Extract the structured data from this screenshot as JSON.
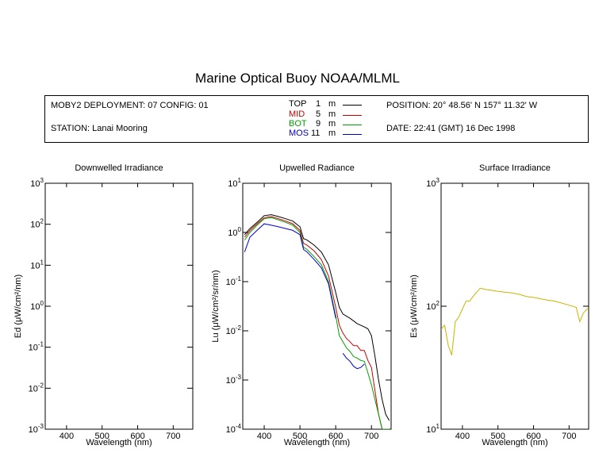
{
  "title": "Marine Optical Buoy NOAA/MLML",
  "info": {
    "deployment": "MOBY2 DEPLOYMENT: 07 CONFIG: 01",
    "station": "STATION: Lanai Mooring",
    "position": "POSITION: 20° 48.56' N   157° 11.32' W",
    "date": "DATE: 22:41 (GMT) 16 Dec 1998"
  },
  "legend": [
    {
      "name": "TOP",
      "depth": "1",
      "unit": "m",
      "color": "#000000"
    },
    {
      "name": "MID",
      "depth": "5",
      "unit": "m",
      "color": "#cc0000"
    },
    {
      "name": "BOT",
      "depth": "9",
      "unit": "m",
      "color": "#00a000"
    },
    {
      "name": "MOS",
      "depth": "11",
      "unit": "m",
      "color": "#0000cc"
    }
  ],
  "chart_data": [
    {
      "type": "line",
      "title": "Downwelled Irradiance",
      "xlabel": "Wavelength (nm)",
      "ylabel": "Ed  (μW/cm²/nm)",
      "xlim": [
        340,
        755
      ],
      "ylim": [
        0.001,
        1000
      ],
      "yscale": "log",
      "xticks": [
        400,
        500,
        600,
        700
      ],
      "yticks": [
        {
          "base": "10",
          "exp": "-3"
        },
        {
          "base": "10",
          "exp": "-2"
        },
        {
          "base": "10",
          "exp": "-1"
        },
        {
          "base": "10",
          "exp": "0"
        },
        {
          "base": "10",
          "exp": "1"
        },
        {
          "base": "10",
          "exp": "2"
        },
        {
          "base": "10",
          "exp": "3"
        }
      ],
      "series": []
    },
    {
      "type": "line",
      "title": "Upwelled Radiance",
      "xlabel": "Wavelength (nm)",
      "ylabel": "Lu  (μW/cm²/sr/nm)",
      "xlim": [
        340,
        755
      ],
      "ylim": [
        0.0001,
        10
      ],
      "yscale": "log",
      "xticks": [
        400,
        500,
        600,
        700
      ],
      "yticks": [
        {
          "base": "10",
          "exp": "-4"
        },
        {
          "base": "10",
          "exp": "-3"
        },
        {
          "base": "10",
          "exp": "-2"
        },
        {
          "base": "10",
          "exp": "-1"
        },
        {
          "base": "10",
          "exp": "0"
        },
        {
          "base": "10",
          "exp": "1"
        }
      ],
      "series": [
        {
          "name": "TOP",
          "color": "#000000",
          "x": [
            345,
            360,
            380,
            400,
            420,
            440,
            460,
            480,
            500,
            510,
            520,
            540,
            560,
            580,
            600,
            610,
            620,
            640,
            660,
            680,
            690,
            700,
            710,
            720,
            730,
            740,
            750
          ],
          "y": [
            0.9,
            1.2,
            1.6,
            2.2,
            2.3,
            2.1,
            1.9,
            1.7,
            1.3,
            0.75,
            0.7,
            0.55,
            0.4,
            0.22,
            0.06,
            0.03,
            0.022,
            0.018,
            0.014,
            0.012,
            0.011,
            0.008,
            0.003,
            0.001,
            0.0004,
            0.0002,
            0.00015
          ]
        },
        {
          "name": "MID",
          "color": "#cc0000",
          "x": [
            345,
            360,
            380,
            400,
            420,
            440,
            460,
            480,
            500,
            510,
            520,
            540,
            560,
            580,
            600,
            610,
            620,
            630,
            640,
            650,
            660,
            670,
            680,
            690,
            700,
            710,
            720,
            730,
            740,
            750
          ],
          "y": [
            0.8,
            1.1,
            1.5,
            2.0,
            2.1,
            1.9,
            1.7,
            1.5,
            1.1,
            0.6,
            0.55,
            0.42,
            0.28,
            0.13,
            0.03,
            0.013,
            0.009,
            0.007,
            0.006,
            0.005,
            0.005,
            0.004,
            0.004,
            0.0025,
            0.0018,
            0.0006,
            0.0002,
            0.0001,
            0.0001,
            0.0001
          ]
        },
        {
          "name": "BOT",
          "color": "#00a000",
          "x": [
            345,
            360,
            380,
            400,
            420,
            440,
            460,
            480,
            500,
            510,
            520,
            540,
            560,
            580,
            600,
            610,
            620,
            630,
            640,
            650,
            660,
            670,
            680,
            690,
            700,
            710,
            720,
            730,
            740,
            750
          ],
          "y": [
            0.7,
            1.0,
            1.4,
            1.9,
            2.0,
            1.8,
            1.6,
            1.4,
            1.0,
            0.5,
            0.45,
            0.32,
            0.22,
            0.1,
            0.02,
            0.008,
            0.006,
            0.0045,
            0.0038,
            0.003,
            0.0028,
            0.0025,
            0.0024,
            0.0014,
            0.0008,
            0.0004,
            0.0002,
            0.0001,
            0.0001,
            0.0001
          ]
        },
        {
          "name": "MOS",
          "color": "#0000cc",
          "x": [
            345,
            360,
            380,
            400,
            420,
            440,
            460,
            480,
            500,
            510,
            520,
            540,
            560,
            580,
            600
          ],
          "y": [
            0.4,
            0.8,
            1.1,
            1.5,
            1.4,
            1.3,
            1.2,
            1.1,
            0.9,
            0.45,
            0.4,
            0.28,
            0.19,
            0.09,
            0.018
          ]
        },
        {
          "name": "MOS",
          "color": "#0000cc",
          "x": [
            620,
            630,
            640,
            650,
            660,
            670,
            680
          ],
          "y": [
            0.0035,
            0.0028,
            0.0024,
            0.0019,
            0.0017,
            0.0018,
            0.0021
          ]
        }
      ]
    },
    {
      "type": "line",
      "title": "Surface Irradiance",
      "xlabel": "Wavelength (nm)",
      "ylabel": "Es  (μW/cm²/nm)",
      "xlim": [
        340,
        755
      ],
      "ylim": [
        10,
        1000
      ],
      "yscale": "log",
      "xticks": [
        400,
        500,
        600,
        700
      ],
      "yticks": [
        {
          "base": "10",
          "exp": "1"
        },
        {
          "base": "10",
          "exp": "2"
        },
        {
          "base": "10",
          "exp": "3"
        }
      ],
      "series": [
        {
          "name": "Es",
          "color": "#c8b400",
          "x": [
            340,
            350,
            360,
            370,
            380,
            390,
            400,
            410,
            420,
            430,
            440,
            450,
            460,
            470,
            480,
            500,
            520,
            540,
            560,
            580,
            600,
            620,
            640,
            660,
            680,
            700,
            720,
            730,
            740,
            750,
            755
          ],
          "y": [
            65,
            70,
            48,
            40,
            75,
            82,
            95,
            110,
            110,
            120,
            130,
            140,
            138,
            136,
            135,
            132,
            130,
            128,
            125,
            120,
            118,
            115,
            112,
            110,
            106,
            102,
            98,
            75,
            88,
            95,
            96
          ]
        }
      ]
    }
  ]
}
